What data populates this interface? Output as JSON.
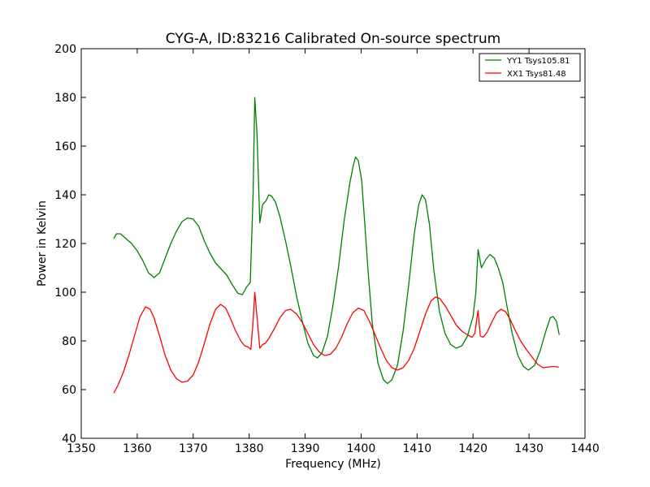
{
  "chart_data": {
    "type": "line",
    "title": "CYG-A, ID:83216 Calibrated On-source spectrum",
    "xlabel": "Frequency (MHz)",
    "ylabel": "Power in Kelvin",
    "xlim": [
      1350,
      1440
    ],
    "ylim": [
      40,
      200
    ],
    "xticks": [
      1350,
      1360,
      1370,
      1380,
      1390,
      1400,
      1410,
      1420,
      1430,
      1440
    ],
    "yticks": [
      40,
      60,
      80,
      100,
      120,
      140,
      160,
      180,
      200
    ],
    "grid": false,
    "legend_position": "top-right",
    "series": [
      {
        "name": "YY1 Tsys105.81",
        "color": "#008000",
        "points": [
          [
            1355.8,
            122
          ],
          [
            1356.3,
            124
          ],
          [
            1357,
            124
          ],
          [
            1358,
            122
          ],
          [
            1359,
            120
          ],
          [
            1360,
            117
          ],
          [
            1361,
            113
          ],
          [
            1362,
            108
          ],
          [
            1363,
            106
          ],
          [
            1364,
            108
          ],
          [
            1365,
            114
          ],
          [
            1366,
            120
          ],
          [
            1367,
            125
          ],
          [
            1368,
            129
          ],
          [
            1369,
            130.5
          ],
          [
            1370,
            130
          ],
          [
            1371,
            127
          ],
          [
            1372,
            121
          ],
          [
            1373,
            116
          ],
          [
            1374,
            112
          ],
          [
            1375,
            109.5
          ],
          [
            1376,
            107
          ],
          [
            1377,
            103
          ],
          [
            1378,
            99.5
          ],
          [
            1378.8,
            99
          ],
          [
            1379.5,
            102
          ],
          [
            1380.2,
            104
          ],
          [
            1380.7,
            140
          ],
          [
            1381,
            180
          ],
          [
            1381.4,
            165
          ],
          [
            1381.9,
            128.5
          ],
          [
            1382.4,
            136
          ],
          [
            1383,
            137.5
          ],
          [
            1383.5,
            140
          ],
          [
            1384,
            139.5
          ],
          [
            1384.7,
            137
          ],
          [
            1385.5,
            131
          ],
          [
            1386.5,
            121
          ],
          [
            1387.5,
            110
          ],
          [
            1388.5,
            98
          ],
          [
            1389.5,
            88
          ],
          [
            1390.5,
            79
          ],
          [
            1391.5,
            74
          ],
          [
            1392.2,
            73
          ],
          [
            1393,
            75
          ],
          [
            1394,
            82
          ],
          [
            1395,
            95
          ],
          [
            1396,
            111
          ],
          [
            1397,
            130
          ],
          [
            1398,
            145
          ],
          [
            1398.6,
            152
          ],
          [
            1399,
            155.5
          ],
          [
            1399.5,
            154
          ],
          [
            1400.1,
            146
          ],
          [
            1400.6,
            130
          ],
          [
            1401.2,
            110
          ],
          [
            1402,
            87
          ],
          [
            1403,
            71
          ],
          [
            1404,
            64
          ],
          [
            1404.7,
            62.5
          ],
          [
            1405.5,
            64
          ],
          [
            1406.5,
            70
          ],
          [
            1407.5,
            84
          ],
          [
            1408.5,
            103
          ],
          [
            1409.5,
            124
          ],
          [
            1410.3,
            136
          ],
          [
            1410.9,
            140
          ],
          [
            1411.5,
            138
          ],
          [
            1412.2,
            128
          ],
          [
            1413,
            109
          ],
          [
            1414,
            92
          ],
          [
            1415,
            83
          ],
          [
            1416,
            78.5
          ],
          [
            1417,
            77
          ],
          [
            1418,
            78
          ],
          [
            1419,
            82
          ],
          [
            1420,
            90
          ],
          [
            1420.5,
            100
          ],
          [
            1420.9,
            117.5
          ],
          [
            1421.5,
            110
          ],
          [
            1422.3,
            113.5
          ],
          [
            1423,
            115.5
          ],
          [
            1423.8,
            114
          ],
          [
            1424.5,
            110
          ],
          [
            1425.3,
            104
          ],
          [
            1426,
            95
          ],
          [
            1427,
            83
          ],
          [
            1428,
            74
          ],
          [
            1429,
            69.5
          ],
          [
            1429.9,
            68
          ],
          [
            1431,
            70
          ],
          [
            1432,
            76
          ],
          [
            1433,
            84
          ],
          [
            1433.8,
            89.5
          ],
          [
            1434.3,
            90
          ],
          [
            1434.9,
            88
          ],
          [
            1435.4,
            82.5
          ]
        ]
      },
      {
        "name": "XX1 Tsys81.48",
        "color": "#ff0000",
        "points": [
          [
            1355.8,
            58.5
          ],
          [
            1356.6,
            62
          ],
          [
            1357.5,
            67
          ],
          [
            1358.5,
            74
          ],
          [
            1359.5,
            82
          ],
          [
            1360.5,
            90
          ],
          [
            1361.5,
            94
          ],
          [
            1362.3,
            93
          ],
          [
            1363,
            89.5
          ],
          [
            1364,
            82
          ],
          [
            1365,
            74
          ],
          [
            1366,
            68
          ],
          [
            1367,
            64.5
          ],
          [
            1368,
            63
          ],
          [
            1369,
            63.5
          ],
          [
            1370,
            66
          ],
          [
            1371,
            71.5
          ],
          [
            1372,
            79
          ],
          [
            1373,
            87
          ],
          [
            1374,
            93
          ],
          [
            1374.9,
            95
          ],
          [
            1375.8,
            93.5
          ],
          [
            1376.7,
            89
          ],
          [
            1377.5,
            84.5
          ],
          [
            1378.5,
            80
          ],
          [
            1379.2,
            78
          ],
          [
            1379.8,
            77.5
          ],
          [
            1380.3,
            76.5
          ],
          [
            1380.7,
            88
          ],
          [
            1381,
            100
          ],
          [
            1381.4,
            90
          ],
          [
            1381.9,
            77
          ],
          [
            1382.4,
            78.5
          ],
          [
            1382.9,
            79
          ],
          [
            1383.5,
            81
          ],
          [
            1384.5,
            85
          ],
          [
            1385.5,
            89.5
          ],
          [
            1386.5,
            92.5
          ],
          [
            1387.4,
            93
          ],
          [
            1388.5,
            91
          ],
          [
            1389.5,
            87.5
          ],
          [
            1390.5,
            83
          ],
          [
            1391.5,
            78.5
          ],
          [
            1392.5,
            75.5
          ],
          [
            1393.5,
            74
          ],
          [
            1394.5,
            74.5
          ],
          [
            1395.5,
            77
          ],
          [
            1396.5,
            81.5
          ],
          [
            1397.5,
            87
          ],
          [
            1398.5,
            91.5
          ],
          [
            1399.5,
            93.5
          ],
          [
            1400.5,
            92.5
          ],
          [
            1401.5,
            88
          ],
          [
            1402.5,
            82.5
          ],
          [
            1403.5,
            77
          ],
          [
            1404.5,
            72
          ],
          [
            1405.5,
            69
          ],
          [
            1406.5,
            68
          ],
          [
            1407.5,
            69
          ],
          [
            1408.5,
            72
          ],
          [
            1409.5,
            77
          ],
          [
            1410.5,
            84
          ],
          [
            1411.5,
            91
          ],
          [
            1412.5,
            96.5
          ],
          [
            1413.3,
            98
          ],
          [
            1414,
            97.5
          ],
          [
            1415,
            94.5
          ],
          [
            1416,
            90.5
          ],
          [
            1417,
            86.5
          ],
          [
            1418,
            84
          ],
          [
            1419,
            82.5
          ],
          [
            1419.8,
            81.5
          ],
          [
            1420.3,
            83
          ],
          [
            1420.9,
            92.5
          ],
          [
            1421.3,
            82
          ],
          [
            1421.8,
            81.5
          ],
          [
            1422.5,
            83.5
          ],
          [
            1423.3,
            87.5
          ],
          [
            1424.2,
            91.5
          ],
          [
            1425,
            93
          ],
          [
            1425.8,
            92
          ],
          [
            1426.6,
            89
          ],
          [
            1427.5,
            84.5
          ],
          [
            1428.5,
            80
          ],
          [
            1429.5,
            76.5
          ],
          [
            1430.5,
            73.5
          ],
          [
            1431.5,
            70.5
          ],
          [
            1432.5,
            69
          ],
          [
            1433.5,
            69.3
          ],
          [
            1434.5,
            69.5
          ],
          [
            1435.3,
            69.2
          ]
        ]
      }
    ]
  }
}
